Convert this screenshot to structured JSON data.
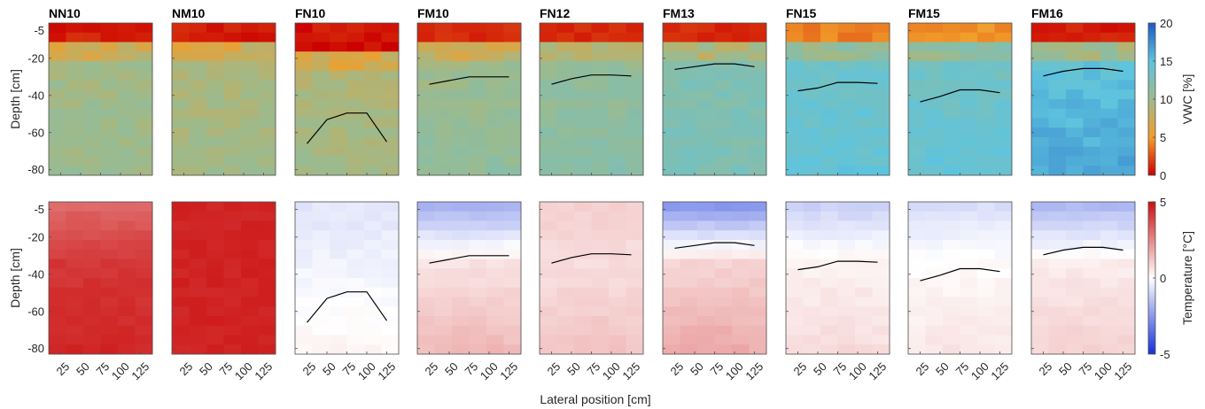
{
  "chart_data": {
    "type": "heatmap",
    "panels": [
      "NN10",
      "NM10",
      "FN10",
      "FM10",
      "FN12",
      "FM13",
      "FN15",
      "FM15",
      "FM16"
    ],
    "depth_ticks": [
      -5,
      -20,
      -40,
      -60,
      -80
    ],
    "depth_range": [
      -83,
      -1
    ],
    "lateral_ticks": [
      25,
      50,
      75,
      100,
      125
    ],
    "lateral_tick_labels": [
      "25",
      "50",
      "75",
      "100",
      "125"
    ],
    "lateral_range": [
      10,
      140
    ],
    "xlabel": "Lateral position [cm]",
    "rows": [
      {
        "name": "vwc",
        "ylabel": "Depth [cm]",
        "colorbar": {
          "label": "VWC [%]",
          "ticks": [
            0,
            5,
            10,
            15,
            20
          ],
          "tick_labels": [
            "0",
            "5",
            "10",
            "15",
            "20"
          ],
          "range": [
            0,
            20
          ],
          "stops": [
            "#cc0000",
            "#f29e2a",
            "#9dba8c",
            "#5ec4de",
            "#1f58c2"
          ]
        },
        "panel_values": [
          {
            "top": 0.3,
            "mid": 9.6,
            "bottom": 10.2,
            "front": null
          },
          {
            "top": 0.3,
            "mid": 8.8,
            "bottom": 9.8,
            "front": null
          },
          {
            "top": 0.0,
            "mid": 8.6,
            "bottom": 9.8,
            "front": null
          },
          {
            "top": 0.5,
            "mid": 9.8,
            "bottom": 11.0,
            "front": null
          },
          {
            "top": 0.8,
            "mid": 10.4,
            "bottom": 11.6,
            "front": null
          },
          {
            "top": 0.6,
            "mid": 12.0,
            "bottom": 12.6,
            "front": null
          },
          {
            "top": 3.5,
            "mid": 13.4,
            "bottom": 14.6,
            "front": null
          },
          {
            "top": 4.0,
            "mid": 13.0,
            "bottom": 14.6,
            "front": null
          },
          {
            "top": 0.2,
            "mid": 14.2,
            "bottom": 16.4,
            "front": null
          }
        ]
      },
      {
        "name": "temperature",
        "ylabel": "Depth [cm]",
        "colorbar": {
          "label": "Temperature [°C]",
          "ticks": [
            -5,
            0,
            5
          ],
          "tick_labels": [
            "-5",
            "0",
            "5"
          ],
          "range": [
            -5,
            5
          ],
          "stops": [
            "#1430d9",
            "#ffffff",
            "#cc1010"
          ]
        },
        "panel_values": [
          {
            "top": 3.2,
            "mid": 4.2,
            "bottom": 4.6
          },
          {
            "top": 4.6,
            "mid": 4.6,
            "bottom": 4.6
          },
          {
            "top": -0.6,
            "mid": -0.3,
            "bottom": 0.3
          },
          {
            "top": -1.9,
            "mid": 0.6,
            "bottom": 1.6
          },
          {
            "top": 1.0,
            "mid": 0.7,
            "bottom": 1.3
          },
          {
            "top": -2.5,
            "mid": 0.9,
            "bottom": 1.9
          },
          {
            "top": -1.1,
            "mid": 0.3,
            "bottom": 0.8
          },
          {
            "top": -0.8,
            "mid": 0.1,
            "bottom": 0.6
          },
          {
            "top": -1.7,
            "mid": 0.4,
            "bottom": 1.0
          }
        ]
      }
    ],
    "freezing_front": [
      null,
      null,
      {
        "x": [
          25,
          50,
          75,
          100,
          125
        ],
        "depth": [
          -66,
          -53,
          -49.5,
          -49.5,
          -65
        ]
      },
      {
        "x": [
          25,
          50,
          75,
          100,
          125
        ],
        "depth": [
          -34,
          -32,
          -30,
          -30,
          -30
        ]
      },
      {
        "x": [
          25,
          50,
          75,
          100,
          125
        ],
        "depth": [
          -34,
          -31,
          -29,
          -29,
          -29.5
        ]
      },
      {
        "x": [
          25,
          50,
          75,
          100,
          125
        ],
        "depth": [
          -26,
          -24.5,
          -23,
          -23,
          -24.5
        ]
      },
      {
        "x": [
          25,
          50,
          75,
          100,
          125
        ],
        "depth": [
          -37.5,
          -36,
          -33,
          -33,
          -33.5
        ]
      },
      {
        "x": [
          25,
          50,
          75,
          100,
          125
        ],
        "depth": [
          -43.5,
          -40.5,
          -37,
          -37,
          -38.5
        ]
      },
      {
        "x": [
          25,
          50,
          75,
          100,
          125
        ],
        "depth": [
          -29.5,
          -27,
          -25.5,
          -25.5,
          -27
        ]
      }
    ]
  }
}
